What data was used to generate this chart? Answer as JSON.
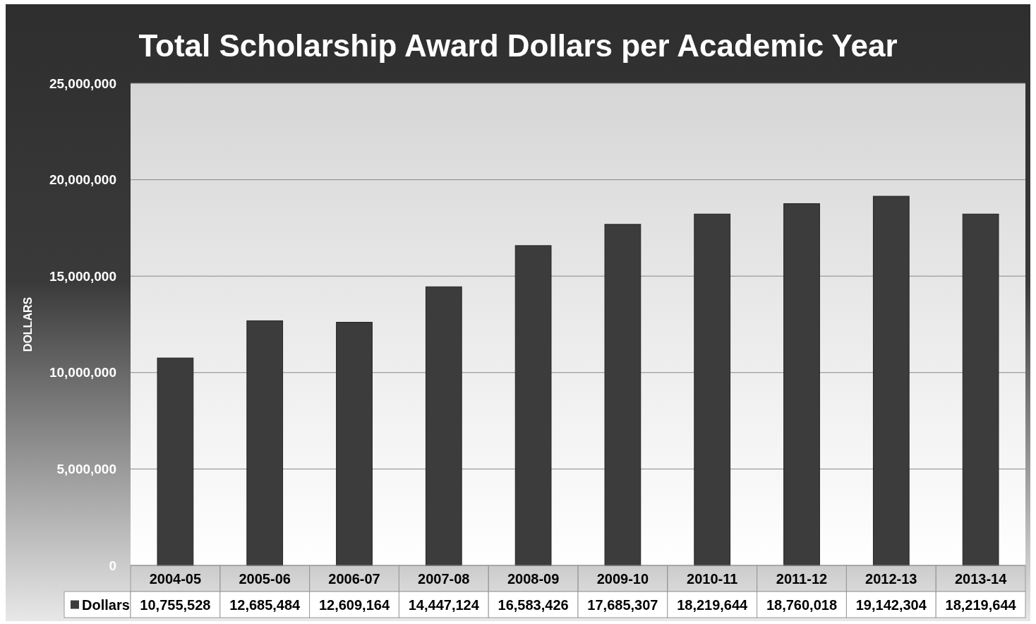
{
  "chart_data": {
    "type": "bar",
    "title": "Total Scholarship Award Dollars per Academic Year",
    "ylabel": "DOLLARS",
    "categories": [
      "2004-05",
      "2005-06",
      "2006-07",
      "2007-08",
      "2008-09",
      "2009-10",
      "2010-11",
      "2011-12",
      "2012-13",
      "2013-14"
    ],
    "series": [
      {
        "name": "Dollars",
        "color": "#3c3c3c",
        "values": [
          10755528,
          12685484,
          12609164,
          14447124,
          16583426,
          17685307,
          18219644,
          18760018,
          19142304,
          18219644
        ],
        "value_labels": [
          "10,755,528",
          "12,685,484",
          "12,609,164",
          "14,447,124",
          "16,583,426",
          "17,685,307",
          "18,219,644",
          "18,760,018",
          "19,142,304",
          "18,219,644"
        ]
      }
    ],
    "ylim": [
      0,
      25000000
    ],
    "yticks": [
      {
        "value": 0,
        "label": "0"
      },
      {
        "value": 5000000,
        "label": "5,000,000"
      },
      {
        "value": 10000000,
        "label": "10,000,000"
      },
      {
        "value": 15000000,
        "label": "15,000,000"
      },
      {
        "value": 20000000,
        "label": "20,000,000"
      },
      {
        "value": 25000000,
        "label": "25,000,000"
      }
    ],
    "grid": "y",
    "legend": "bottom"
  }
}
